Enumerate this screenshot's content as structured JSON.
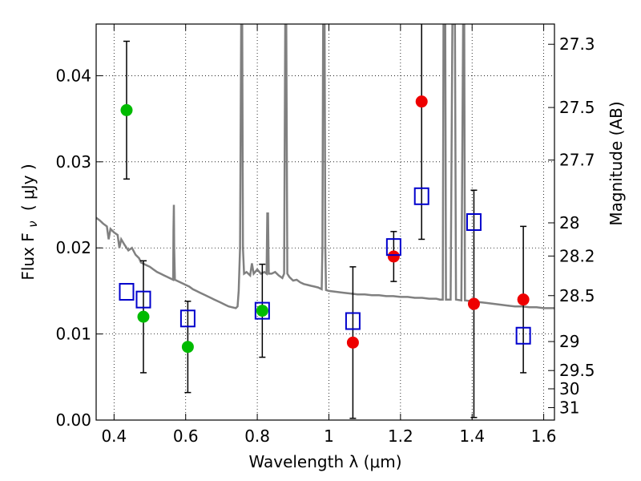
{
  "chart_data": {
    "type": "scatter",
    "xlabel": "Wavelength  λ (μm)",
    "ylabel": "Flux  F",
    "ylabel_sub": "ν",
    "ylabel_unit": "( μJy )",
    "y2label": "Magnitude (AB)",
    "xlim": [
      0.35,
      1.63
    ],
    "ylim": [
      0.0,
      0.046
    ],
    "grid": true,
    "x_ticks": [
      {
        "value": 0.4,
        "label": "0.4"
      },
      {
        "value": 0.6,
        "label": "0.6"
      },
      {
        "value": 0.8,
        "label": "0.8"
      },
      {
        "value": 1.0,
        "label": "1"
      },
      {
        "value": 1.2,
        "label": "1.2"
      },
      {
        "value": 1.4,
        "label": "1.4"
      },
      {
        "value": 1.6,
        "label": "1.6"
      }
    ],
    "y_ticks": [
      {
        "value": 0.0,
        "label": "0.00"
      },
      {
        "value": 0.01,
        "label": "0.01"
      },
      {
        "value": 0.02,
        "label": "0.02"
      },
      {
        "value": 0.03,
        "label": "0.03"
      },
      {
        "value": 0.04,
        "label": "0.04"
      }
    ],
    "y2_ticks": [
      {
        "value": 27.3,
        "label": "27.3"
      },
      {
        "value": 27.5,
        "label": "27.5"
      },
      {
        "value": 27.7,
        "label": "27.7"
      },
      {
        "value": 28.0,
        "label": "28"
      },
      {
        "value": 28.2,
        "label": "28.2"
      },
      {
        "value": 28.5,
        "label": "28.5"
      },
      {
        "value": 29.0,
        "label": "29"
      },
      {
        "value": 29.5,
        "label": "29.5"
      },
      {
        "value": 30.0,
        "label": "30"
      },
      {
        "value": 31.0,
        "label": "31"
      }
    ],
    "colors": {
      "green": "#00bb00",
      "red": "#ee0000",
      "model_box": "#0000cc",
      "spectrum": "#808080",
      "error": "#000000"
    },
    "series": [
      {
        "name": "observed (green)",
        "marker": "circle",
        "color": "#00bb00",
        "points": [
          {
            "x": 0.435,
            "y": 0.036,
            "err": 0.008
          },
          {
            "x": 0.482,
            "y": 0.012,
            "err": 0.0065
          },
          {
            "x": 0.606,
            "y": 0.0085,
            "err": 0.0053
          },
          {
            "x": 0.814,
            "y": 0.0127,
            "err": 0.0054
          }
        ]
      },
      {
        "name": "observed (red)",
        "marker": "circle",
        "color": "#ee0000",
        "points": [
          {
            "x": 1.067,
            "y": 0.009,
            "err": 0.0088
          },
          {
            "x": 1.181,
            "y": 0.019,
            "err": 0.0029
          },
          {
            "x": 1.259,
            "y": 0.037,
            "err": 0.016
          },
          {
            "x": 1.405,
            "y": 0.0135,
            "err": 0.0132
          },
          {
            "x": 1.543,
            "y": 0.014,
            "err": 0.0085
          }
        ]
      },
      {
        "name": "model photometry",
        "marker": "open-square",
        "color": "#0000cc",
        "points": [
          {
            "x": 0.435,
            "y": 0.0149
          },
          {
            "x": 0.482,
            "y": 0.014
          },
          {
            "x": 0.606,
            "y": 0.0118
          },
          {
            "x": 0.814,
            "y": 0.0127
          },
          {
            "x": 1.067,
            "y": 0.0115
          },
          {
            "x": 1.181,
            "y": 0.0201
          },
          {
            "x": 1.259,
            "y": 0.026
          },
          {
            "x": 1.405,
            "y": 0.023
          },
          {
            "x": 1.543,
            "y": 0.0098
          }
        ]
      }
    ],
    "spectrum": [
      [
        0.35,
        0.0235
      ],
      [
        0.36,
        0.0232
      ],
      [
        0.37,
        0.0228
      ],
      [
        0.38,
        0.0225
      ],
      [
        0.385,
        0.021
      ],
      [
        0.39,
        0.0222
      ],
      [
        0.4,
        0.0218
      ],
      [
        0.41,
        0.0215
      ],
      [
        0.415,
        0.02
      ],
      [
        0.42,
        0.021
      ],
      [
        0.43,
        0.0203
      ],
      [
        0.44,
        0.0197
      ],
      [
        0.45,
        0.02
      ],
      [
        0.46,
        0.0192
      ],
      [
        0.47,
        0.0188
      ],
      [
        0.475,
        0.0183
      ],
      [
        0.48,
        0.0182
      ],
      [
        0.49,
        0.018
      ],
      [
        0.5,
        0.0178
      ],
      [
        0.51,
        0.0175
      ],
      [
        0.52,
        0.0172
      ],
      [
        0.53,
        0.017
      ],
      [
        0.54,
        0.0168
      ],
      [
        0.55,
        0.0166
      ],
      [
        0.56,
        0.0164
      ],
      [
        0.565,
        0.0163
      ],
      [
        0.566,
        0.022
      ],
      [
        0.567,
        0.025
      ],
      [
        0.568,
        0.02
      ],
      [
        0.57,
        0.0163
      ],
      [
        0.58,
        0.0161
      ],
      [
        0.59,
        0.0159
      ],
      [
        0.6,
        0.0157
      ],
      [
        0.61,
        0.0155
      ],
      [
        0.62,
        0.0152
      ],
      [
        0.63,
        0.015
      ],
      [
        0.64,
        0.0148
      ],
      [
        0.65,
        0.0146
      ],
      [
        0.66,
        0.0144
      ],
      [
        0.67,
        0.0142
      ],
      [
        0.68,
        0.014
      ],
      [
        0.69,
        0.0138
      ],
      [
        0.7,
        0.0136
      ],
      [
        0.71,
        0.0134
      ],
      [
        0.72,
        0.0132
      ],
      [
        0.73,
        0.0131
      ],
      [
        0.74,
        0.013
      ],
      [
        0.745,
        0.0132
      ],
      [
        0.748,
        0.015
      ],
      [
        0.752,
        0.02
      ],
      [
        0.755,
        0.046
      ],
      [
        0.758,
        0.046
      ],
      [
        0.76,
        0.02
      ],
      [
        0.763,
        0.017
      ],
      [
        0.77,
        0.0172
      ],
      [
        0.78,
        0.0168
      ],
      [
        0.785,
        0.0182
      ],
      [
        0.79,
        0.017
      ],
      [
        0.8,
        0.0175
      ],
      [
        0.81,
        0.017
      ],
      [
        0.82,
        0.0172
      ],
      [
        0.826,
        0.017
      ],
      [
        0.828,
        0.024
      ],
      [
        0.83,
        0.024
      ],
      [
        0.832,
        0.017
      ],
      [
        0.84,
        0.017
      ],
      [
        0.85,
        0.0172
      ],
      [
        0.86,
        0.0168
      ],
      [
        0.87,
        0.0165
      ],
      [
        0.875,
        0.017
      ],
      [
        0.878,
        0.046
      ],
      [
        0.881,
        0.046
      ],
      [
        0.884,
        0.017
      ],
      [
        0.89,
        0.0166
      ],
      [
        0.9,
        0.0162
      ],
      [
        0.91,
        0.0163
      ],
      [
        0.92,
        0.016
      ],
      [
        0.93,
        0.0158
      ],
      [
        0.94,
        0.0157
      ],
      [
        0.95,
        0.0156
      ],
      [
        0.96,
        0.0155
      ],
      [
        0.97,
        0.0154
      ],
      [
        0.98,
        0.0152
      ],
      [
        0.982,
        0.02
      ],
      [
        0.984,
        0.046
      ],
      [
        0.988,
        0.046
      ],
      [
        0.99,
        0.02
      ],
      [
        0.992,
        0.0151
      ],
      [
        1.0,
        0.015
      ],
      [
        1.02,
        0.0149
      ],
      [
        1.04,
        0.0148
      ],
      [
        1.06,
        0.0147
      ],
      [
        1.08,
        0.0146
      ],
      [
        1.1,
        0.0146
      ],
      [
        1.12,
        0.0145
      ],
      [
        1.14,
        0.0145
      ],
      [
        1.16,
        0.0144
      ],
      [
        1.18,
        0.0144
      ],
      [
        1.2,
        0.0143
      ],
      [
        1.22,
        0.0143
      ],
      [
        1.24,
        0.0142
      ],
      [
        1.26,
        0.0142
      ],
      [
        1.28,
        0.0141
      ],
      [
        1.3,
        0.0141
      ],
      [
        1.31,
        0.014
      ],
      [
        1.318,
        0.014
      ],
      [
        1.32,
        0.046
      ],
      [
        1.325,
        0.046
      ],
      [
        1.327,
        0.014
      ],
      [
        1.34,
        0.014
      ],
      [
        1.345,
        0.046
      ],
      [
        1.352,
        0.046
      ],
      [
        1.355,
        0.014
      ],
      [
        1.37,
        0.0139
      ],
      [
        1.375,
        0.046
      ],
      [
        1.378,
        0.046
      ],
      [
        1.38,
        0.0139
      ],
      [
        1.4,
        0.0138
      ],
      [
        1.42,
        0.0137
      ],
      [
        1.44,
        0.0136
      ],
      [
        1.46,
        0.0135
      ],
      [
        1.48,
        0.0134
      ],
      [
        1.5,
        0.0133
      ],
      [
        1.52,
        0.0132
      ],
      [
        1.54,
        0.0132
      ],
      [
        1.56,
        0.0131
      ],
      [
        1.58,
        0.0131
      ],
      [
        1.6,
        0.013
      ],
      [
        1.62,
        0.013
      ],
      [
        1.63,
        0.013
      ]
    ]
  }
}
